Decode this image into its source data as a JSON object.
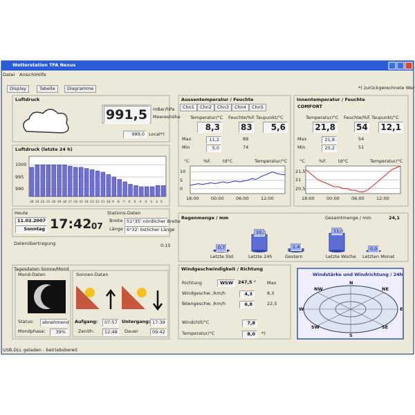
{
  "window": {
    "title": "Wetterstation TFA Nexus",
    "menu": [
      "Datei",
      "Ansicht",
      "Hilfe"
    ],
    "tabs": [
      "Display",
      "Tabelle",
      "Diagramme"
    ],
    "note": "*) zurückgerechnete Werte",
    "status": "USB.DLL geladen - betriebsbereit"
  },
  "pressure": {
    "title": "Luftdruck",
    "value": "991,5",
    "unit": "mBar/hPa",
    "unit2": "Meereshöhe",
    "local": "989,0",
    "local_label": "Local",
    "local_mark": "*)"
  },
  "pressure_chart": {
    "title": "Luftdruck (letzte 24 h)",
    "ylim": [
      987,
      1003.5
    ],
    "yticks": [
      1000,
      995,
      990
    ],
    "categories": [
      "-24",
      "-23",
      "-22",
      "-21",
      "-20",
      "-19",
      "-18",
      "-17",
      "-16",
      "-15",
      "-14",
      "-13",
      "-12",
      "-11",
      "-10",
      "-9",
      "-8",
      "-7",
      "-6",
      "-5",
      "-4",
      "-3",
      "-2",
      "-1",
      "0"
    ],
    "values": [
      999,
      1000,
      1000,
      1000,
      1000,
      1000,
      1000,
      999.5,
      999,
      999,
      998.5,
      998,
      997.5,
      997,
      996,
      995,
      994,
      993,
      992,
      991.5,
      991,
      991,
      991,
      991.5,
      991.5
    ]
  },
  "date": {
    "label": "Heute",
    "date": "11.02.2007",
    "weekday": "Sonntag",
    "time": "17:42",
    "seconds": "07"
  },
  "station": {
    "title": "Stations-Daten",
    "lat_label": "Breite",
    "lat": "51°35' nördlicher Breite",
    "lon_label": "Länge",
    "lon": "6°32' östlicher Länge"
  },
  "transfer": {
    "label": "Datenübertragung",
    "value": "0:15"
  },
  "outdoor": {
    "title": "Aussentemperatur / Feuchte",
    "channels": [
      "Chn1",
      "Chn2",
      "Chn3",
      "Chn4",
      "Chn5"
    ],
    "headers": [
      "Temperatur/°C",
      "Feuchte/%F.",
      "Taupunkt/°C"
    ],
    "values": [
      "8,3",
      "83",
      "5,6"
    ],
    "max_label": "Max",
    "max": [
      "11,2",
      "89"
    ],
    "min_label": "Min",
    "min": [
      "5,0",
      "74"
    ],
    "chips": [
      "°C",
      "%F.",
      "td°C"
    ],
    "chart_label": "Temperatur/°C",
    "chart": {
      "ylim": [
        -3,
        13.5
      ],
      "yticks": [
        10,
        5,
        0
      ],
      "xlabels": [
        "18:00",
        "00:00",
        "06:00",
        "12:00"
      ],
      "values": [
        2,
        2.5,
        3,
        2.5,
        3,
        3.5,
        3,
        3.5,
        4,
        3.5,
        4,
        4.5,
        4,
        4.5,
        5,
        6,
        5.5,
        7,
        8,
        9,
        10,
        9,
        8.5,
        8.3
      ]
    }
  },
  "indoor": {
    "title": "Innentemperatur / Feuchte",
    "comfort": "COMFORT",
    "headers": [
      "Temperatur/°C",
      "Feuchte/%F.",
      "Taupunkt/°C"
    ],
    "values": [
      "21,8",
      "54",
      "12,1"
    ],
    "max_label": "Max",
    "max": [
      "21,8",
      "54"
    ],
    "min_label": "Min",
    "min": [
      "20,2",
      "51"
    ],
    "chips": [
      "°C",
      "%F.",
      "td°C"
    ],
    "chart_label": "Temperatur/°C",
    "chart": {
      "ylim": [
        20.2,
        21.8
      ],
      "yticks": [
        {
          "value": 21.5,
          "label": "21,5"
        },
        21,
        {
          "value": 20.5,
          "label": "20,5"
        }
      ],
      "xlabels": [
        "18:00",
        "00:00",
        "06:00",
        "12:00"
      ],
      "values": [
        21.6,
        21.4,
        21.2,
        21,
        20.9,
        20.8,
        20.7,
        20.6,
        20.6,
        20.5,
        20.5,
        20.4,
        20.4,
        20.3,
        20.3,
        20.4,
        20.6,
        20.8,
        21,
        21.2,
        21.4,
        21.6,
        21.7,
        21.8
      ]
    }
  },
  "rain": {
    "title": "Regenmenge / mm",
    "total_label": "Gesamtmenge / mm",
    "total": "24,1",
    "ylim": [
      0,
      12
    ],
    "categories": [
      "Letzte Std.",
      "Letzte 24h",
      "Gestern",
      "Letzte Woche",
      "Letzten Monat"
    ],
    "values": [
      0.7,
      10.3,
      1.4,
      11.0,
      0.0
    ],
    "value_labels": [
      "0,7",
      "10,3",
      "1,4",
      "11,0",
      "0,0"
    ]
  },
  "sunmoon": {
    "title": "Tagesdaten Sonne/Mond",
    "moon_title": "Mond-Daten",
    "status_label": "Status:",
    "status": "abnehmend",
    "phase_label": "Mondphase:",
    "phase": "39%",
    "sun_title": "Sonnen-Daten",
    "rise_label": "Aufgang:",
    "rise": "07:57",
    "set_label": "Untergang:",
    "set": "17:39",
    "zenith_label": "Zenith:",
    "zenith": "12:48",
    "duration_label": "Dauer",
    "duration": "09:42"
  },
  "wind": {
    "title": "Windgeschwindigkeit / Richtung",
    "dir_label": "Richtung",
    "dir": "WSW",
    "deg": "247,5 °",
    "max_label": "Max",
    "speed_label": "Windgeschw. /km/h",
    "speed": "4,3",
    "speed_max": "8,3",
    "gust_label": "Böengeschw. /km/h",
    "gust": "6,8",
    "gust_max": "22,5",
    "chill_label": "Windchill/°C",
    "chill": "7,8",
    "temp_label": "Temperatur/°C",
    "temp": "8,0",
    "temp_mark": "*)"
  },
  "compass": {
    "title": "Windstärke und Windrichtung / 24h",
    "labels": [
      "N",
      "NE",
      "E",
      "SE",
      "S",
      "SW",
      "W",
      "NW"
    ]
  }
}
